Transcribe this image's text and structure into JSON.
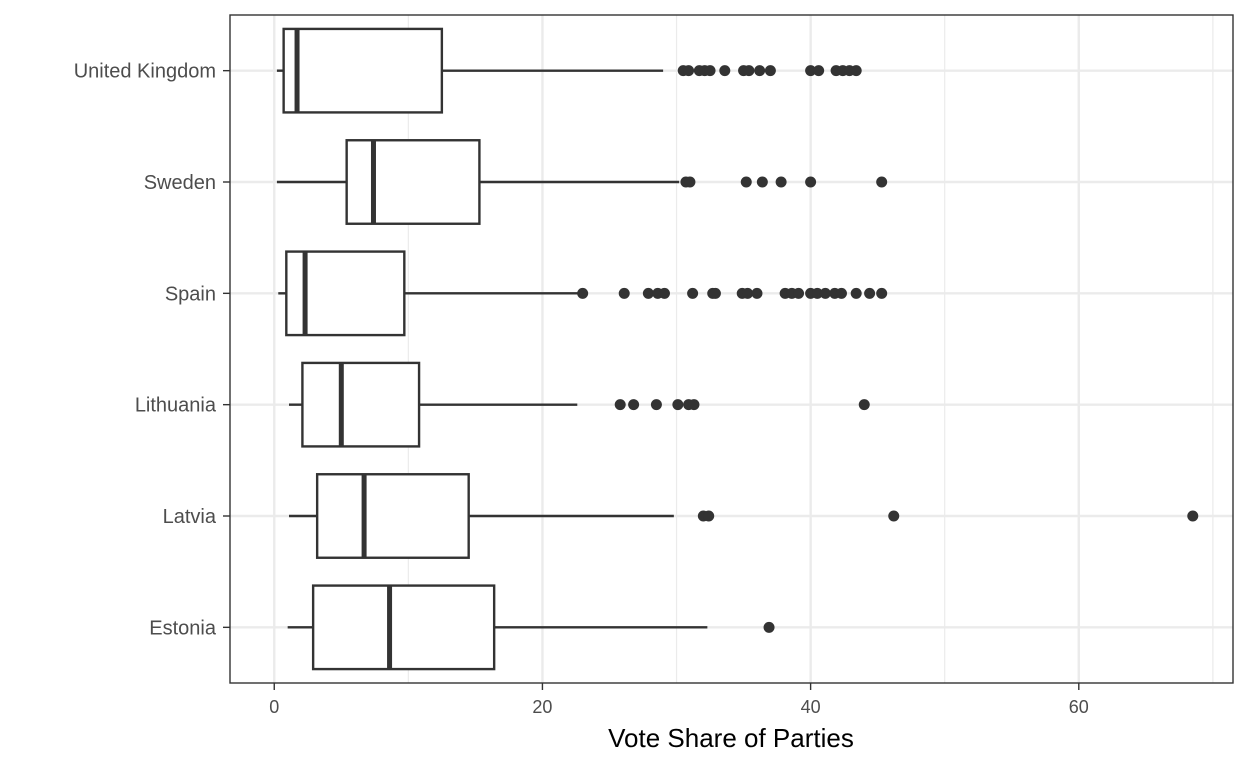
{
  "chart_data": {
    "type": "boxplot",
    "orientation": "horizontal",
    "xlabel": "Vote Share of Parties",
    "ylabel": "",
    "xlim": [
      -3.3,
      71.5
    ],
    "x_ticks": [
      0,
      20,
      40,
      60
    ],
    "x_tick_labels": [
      "0",
      "20",
      "40",
      "60"
    ],
    "x_minor_ticks": [
      10,
      30,
      50,
      70
    ],
    "grid": true,
    "theme": "bw",
    "colors": {
      "box_stroke": "#333333",
      "box_fill": "#ffffff",
      "point": "#333333",
      "grid": "#ebebeb",
      "panel_border": "#333333"
    },
    "categories": [
      "United Kingdom",
      "Sweden",
      "Spain",
      "Lithuania",
      "Latvia",
      "Estonia"
    ],
    "series": [
      {
        "category": "United Kingdom",
        "whisker_low": 0.2,
        "q1": 0.7,
        "median": 1.7,
        "q3": 12.5,
        "whisker_high": 29.0,
        "outliers": [
          30.5,
          30.9,
          31.7,
          32.1,
          32.5,
          33.6,
          35.0,
          35.4,
          36.2,
          37.0,
          40.0,
          40.6,
          41.9,
          42.4,
          42.9,
          43.4
        ]
      },
      {
        "category": "Sweden",
        "whisker_low": 0.2,
        "q1": 5.4,
        "median": 7.4,
        "q3": 15.3,
        "whisker_high": 30.2,
        "outliers": [
          30.7,
          31.0,
          35.2,
          36.4,
          37.8,
          40.0,
          45.3
        ]
      },
      {
        "category": "Spain",
        "whisker_low": 0.3,
        "q1": 0.9,
        "median": 2.3,
        "q3": 9.7,
        "whisker_high": 23.0,
        "outliers": [
          23.0,
          26.1,
          27.9,
          28.6,
          29.1,
          31.2,
          32.7,
          32.9,
          34.9,
          35.3,
          36.0,
          38.1,
          38.6,
          39.1,
          40.0,
          40.5,
          41.1,
          41.8,
          42.3,
          43.4,
          44.4,
          45.3
        ]
      },
      {
        "category": "Lithuania",
        "whisker_low": 1.1,
        "q1": 2.1,
        "median": 5.0,
        "q3": 10.8,
        "whisker_high": 22.6,
        "outliers": [
          25.8,
          26.8,
          28.5,
          30.1,
          30.9,
          31.3,
          44.0
        ]
      },
      {
        "category": "Latvia",
        "whisker_low": 1.1,
        "q1": 3.2,
        "median": 6.7,
        "q3": 14.5,
        "whisker_high": 29.8,
        "outliers": [
          32.0,
          32.4,
          46.2,
          68.5
        ]
      },
      {
        "category": "Estonia",
        "whisker_low": 1.0,
        "q1": 2.9,
        "median": 8.6,
        "q3": 16.4,
        "whisker_high": 32.3,
        "outliers": [
          36.9
        ]
      }
    ]
  }
}
